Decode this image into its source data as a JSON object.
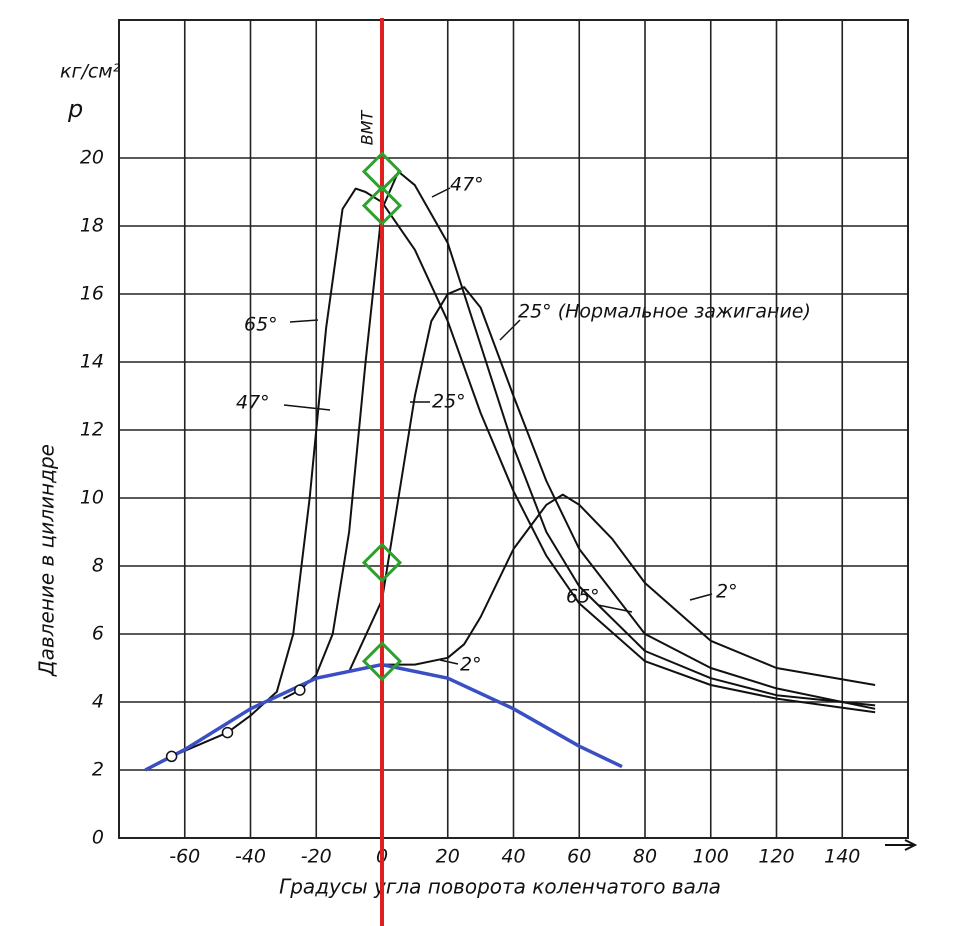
{
  "chart_data": {
    "type": "line",
    "units_label": "кг/см²",
    "y_symbol": "p",
    "ylabel": "Давление в цилиндре",
    "xlabel": "Градусы угла поворота коленчатого вала",
    "xlim": [
      -80,
      160
    ],
    "ylim": [
      0,
      24
    ],
    "xticks": [
      -60,
      -40,
      -20,
      0,
      20,
      40,
      60,
      80,
      100,
      120,
      140
    ],
    "yticks": [
      0,
      2,
      4,
      6,
      8,
      10,
      12,
      14,
      16,
      18,
      20
    ],
    "grid": true,
    "series": [
      {
        "name": "65°",
        "color": "#111111",
        "x": [
          -72,
          -64,
          -47,
          -40,
          -32,
          -27,
          -22,
          -17,
          -12,
          -8,
          -5,
          0,
          10,
          20,
          30,
          40,
          50,
          60,
          80,
          100,
          120,
          150
        ],
        "values": [
          2.0,
          2.4,
          3.1,
          3.6,
          4.3,
          6,
          10,
          15,
          18.5,
          19.1,
          19.0,
          18.7,
          17.3,
          15.2,
          12.5,
          10.2,
          8.3,
          6.9,
          5.2,
          4.5,
          4.1,
          3.7
        ]
      },
      {
        "name": "47°",
        "color": "#111111",
        "x": [
          -30,
          -25,
          -20,
          -15,
          -10,
          -5,
          0,
          5,
          10,
          20,
          30,
          40,
          50,
          60,
          80,
          100,
          120,
          150
        ],
        "values": [
          4.1,
          4.35,
          4.8,
          6,
          9,
          14,
          18.5,
          19.6,
          19.2,
          17.5,
          14.5,
          11.5,
          9,
          7.4,
          5.5,
          4.7,
          4.2,
          3.9
        ]
      },
      {
        "name": "25°",
        "color": "#111111",
        "x": [
          -10,
          0,
          5,
          10,
          15,
          20,
          25,
          30,
          40,
          50,
          60,
          80,
          100,
          120,
          150
        ],
        "values": [
          4.9,
          7,
          10,
          13,
          15.2,
          16,
          16.2,
          15.6,
          13,
          10.5,
          8.5,
          6,
          5,
          4.4,
          3.8
        ]
      },
      {
        "name": "2°",
        "color": "#111111",
        "x": [
          0,
          10,
          20,
          25,
          30,
          40,
          50,
          55,
          60,
          70,
          80,
          100,
          120,
          150
        ],
        "values": [
          5.1,
          5.1,
          5.3,
          5.7,
          6.5,
          8.5,
          9.8,
          10.1,
          9.8,
          8.8,
          7.5,
          5.8,
          5.0,
          4.5
        ]
      },
      {
        "color": "#3a4fc4",
        "x": [
          -72,
          -60,
          -40,
          -20,
          0,
          20,
          40,
          60,
          73
        ],
        "values": [
          2.0,
          2.6,
          3.8,
          4.7,
          5.1,
          4.7,
          3.8,
          2.7,
          2.1
        ]
      }
    ],
    "observed_points": {
      "x": [
        -64,
        -47,
        -25
      ],
      "values": [
        2.4,
        3.1,
        4.35
      ]
    },
    "reference_line": {
      "x": 0,
      "color": "#e02020",
      "label": "ВМТ"
    },
    "highlight_points": {
      "color": "#2ea02e",
      "x": [
        0,
        0,
        0,
        0
      ],
      "values": [
        19.6,
        18.6,
        8.1,
        5.2
      ]
    },
    "annotations": [
      "47°",
      "25° (Нормальное зажигание)",
      "65°",
      "2°"
    ]
  }
}
